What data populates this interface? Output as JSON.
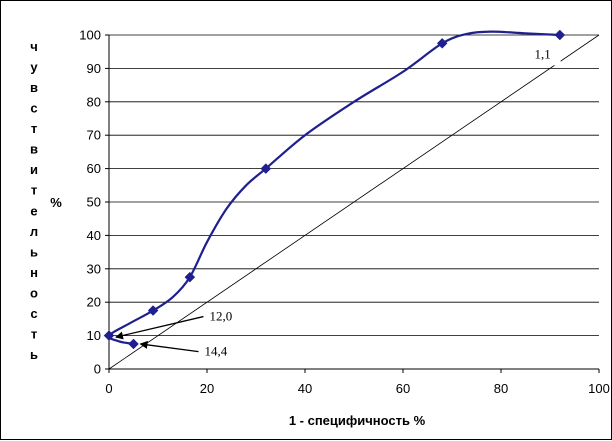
{
  "chart_data": {
    "type": "line",
    "xlabel": "1 - специфичность %",
    "ylabel_letters": [
      "ч",
      "у",
      "в",
      "с",
      "т",
      "в",
      "и",
      "т",
      "е",
      "л",
      "ь",
      "н",
      "о",
      "с",
      "т",
      "ь"
    ],
    "ylabel_unit": "%",
    "xlim": [
      0,
      100
    ],
    "ylim": [
      0,
      100
    ],
    "x_ticks": [
      0,
      20,
      40,
      60,
      80,
      100
    ],
    "y_ticks": [
      0,
      10,
      20,
      30,
      40,
      50,
      60,
      70,
      80,
      90,
      100
    ],
    "grid": "horizontal",
    "legend": "none",
    "colors": {
      "series": "#1f1f8f",
      "axis": "#000000",
      "grid": "#000000"
    },
    "series": [
      {
        "points": [
          {
            "x": 5,
            "y": 7.5
          },
          {
            "x": 0,
            "y": 10
          },
          {
            "x": 9,
            "y": 17.5
          },
          {
            "x": 16.5,
            "y": 27.5
          },
          {
            "x": 32,
            "y": 60
          },
          {
            "x": 68,
            "y": 97.5
          },
          {
            "x": 92,
            "y": 100
          }
        ],
        "curve": [
          [
            5,
            7.5
          ],
          [
            2,
            8.3
          ],
          [
            0,
            10
          ],
          [
            4,
            13.5
          ],
          [
            9,
            17.5
          ],
          [
            13,
            21.5
          ],
          [
            16.5,
            27.5
          ],
          [
            20,
            38
          ],
          [
            24,
            48
          ],
          [
            28,
            55
          ],
          [
            32,
            60
          ],
          [
            40,
            70
          ],
          [
            50,
            80
          ],
          [
            60,
            89
          ],
          [
            68,
            97.5
          ],
          [
            73,
            100.3
          ],
          [
            78,
            101
          ],
          [
            85,
            100.5
          ],
          [
            92,
            100
          ]
        ]
      }
    ],
    "diagonal": [
      [
        0,
        0
      ],
      [
        100,
        100
      ]
    ],
    "annotations": [
      {
        "text": "1,1",
        "point": [
          92,
          100
        ],
        "text_at": [
          88.5,
          93
        ]
      },
      {
        "text": "12,0",
        "point": [
          0,
          10
        ],
        "text_at": [
          20.5,
          14.5
        ]
      },
      {
        "text": "14,4",
        "point": [
          5,
          7.5
        ],
        "text_at": [
          19.5,
          4
        ]
      }
    ]
  }
}
